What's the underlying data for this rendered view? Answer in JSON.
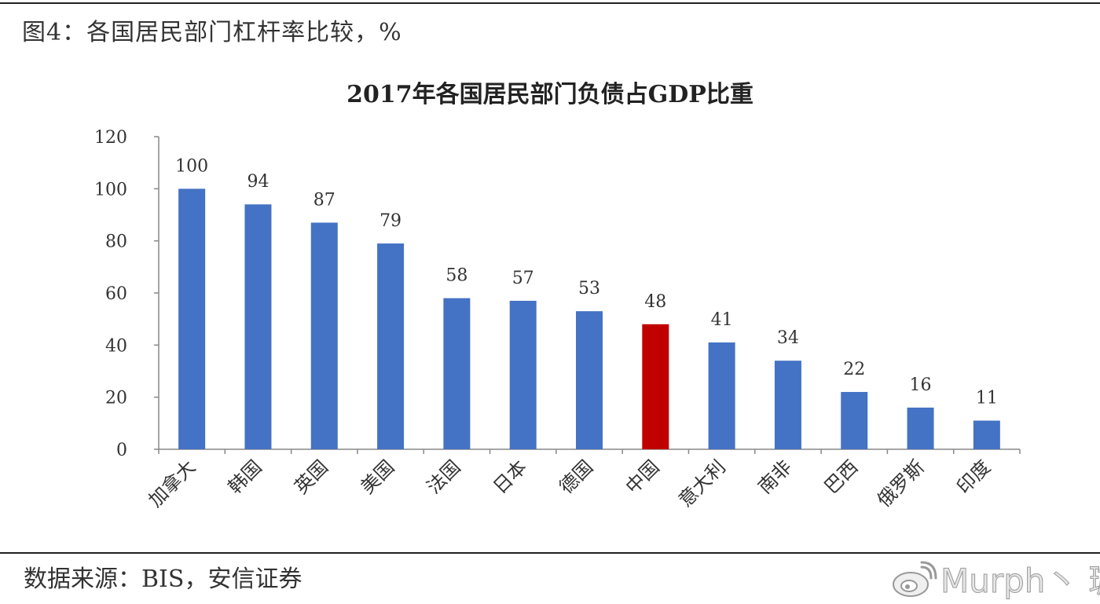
{
  "figure_label": "图4：各国居民部门杠杆率比较，%",
  "source_note": "数据来源：BIS，安信证券",
  "watermark": {
    "text": "Murph丶 璇",
    "icon": "weibo-logo-icon"
  },
  "chart_data": {
    "type": "bar",
    "title": "2017年各国居民部门负债占GDP比重",
    "xlabel": "",
    "ylabel": "",
    "categories": [
      "加拿大",
      "韩国",
      "英国",
      "美国",
      "法国",
      "日本",
      "德国",
      "中国",
      "意大利",
      "南非",
      "巴西",
      "俄罗斯",
      "印度"
    ],
    "values": [
      100,
      94,
      87,
      79,
      58,
      57,
      53,
      48,
      41,
      34,
      22,
      16,
      11
    ],
    "data_labels": [
      "100",
      "94",
      "87",
      "79",
      "58",
      "57",
      "53",
      "48",
      "41",
      "34",
      "22",
      "16",
      "11"
    ],
    "ylim": [
      0,
      120
    ],
    "yticks": [
      0,
      20,
      40,
      60,
      80,
      100,
      120
    ],
    "ytick_labels": [
      "0",
      "20",
      "40",
      "60",
      "80",
      "100",
      "120"
    ],
    "grid": false,
    "legend": "none",
    "colors": {
      "bar": "#4472c4",
      "highlight": "#c00000",
      "highlight_category": "中国"
    }
  }
}
